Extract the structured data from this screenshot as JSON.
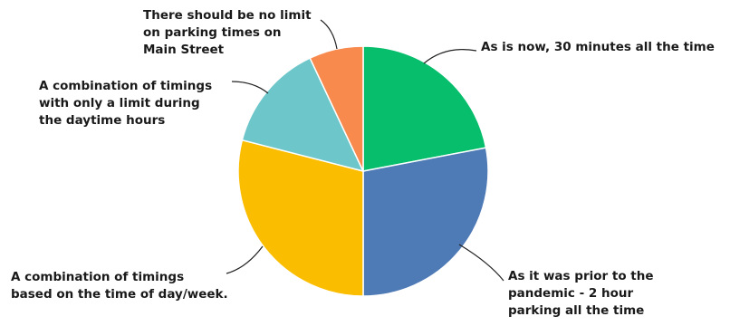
{
  "chart_data": {
    "type": "pie",
    "title": "",
    "start_angle_deg": 0,
    "direction": "clockwise",
    "legend": "none",
    "slices": [
      {
        "label": "As is now, 30 minutes all the time",
        "value": 22,
        "color": "#06BE6B"
      },
      {
        "label": "As it was prior to the\npandemic - 2 hour\nparking all the time",
        "value": 28,
        "color": "#4E7AB5"
      },
      {
        "label": "A combination of timings\nbased on the time of day/week.",
        "value": 29,
        "color": "#FABD00"
      },
      {
        "label": "A combination of timings\nwith only a limit during\nthe daytime hours",
        "value": 14,
        "color": "#6DC6C9"
      },
      {
        "label": "There should be no limit\non parking times on\nMain Street",
        "value": 7,
        "color": "#F88A4E"
      }
    ]
  }
}
